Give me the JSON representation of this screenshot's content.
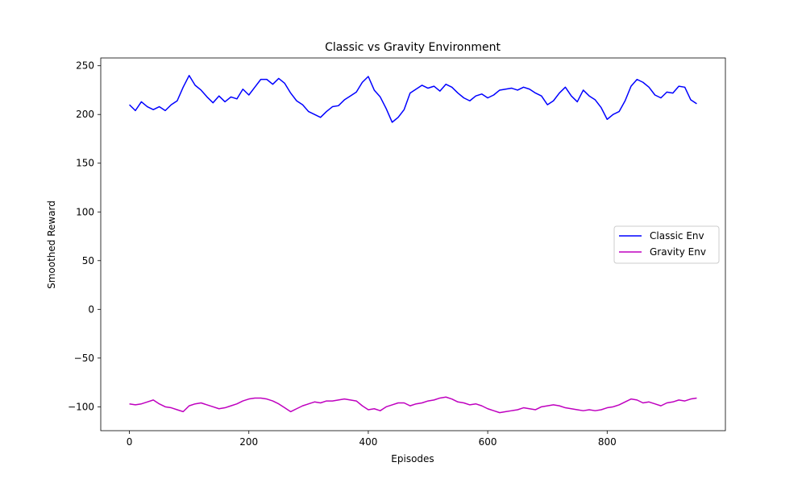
{
  "chart_data": {
    "type": "line",
    "title": "Classic vs Gravity Environment",
    "xlabel": "Episodes",
    "ylabel": "Smoothed Reward",
    "xlim": [
      -48,
      998
    ],
    "ylim": [
      -124.5,
      258
    ],
    "x_ticks": [
      0,
      200,
      400,
      600,
      800
    ],
    "y_ticks": [
      -100,
      -50,
      0,
      50,
      100,
      150,
      200,
      250
    ],
    "grid": false,
    "legend_position": "center right",
    "series": [
      {
        "name": "Classic Env",
        "color": "#0000ff",
        "points": [
          [
            0,
            210
          ],
          [
            10,
            204
          ],
          [
            20,
            213
          ],
          [
            30,
            208
          ],
          [
            40,
            205
          ],
          [
            50,
            208
          ],
          [
            60,
            204
          ],
          [
            70,
            210
          ],
          [
            80,
            214
          ],
          [
            90,
            228
          ],
          [
            100,
            240
          ],
          [
            110,
            230
          ],
          [
            120,
            225
          ],
          [
            130,
            218
          ],
          [
            140,
            212
          ],
          [
            150,
            219
          ],
          [
            160,
            213
          ],
          [
            170,
            218
          ],
          [
            180,
            216
          ],
          [
            190,
            226
          ],
          [
            200,
            220
          ],
          [
            210,
            228
          ],
          [
            220,
            236
          ],
          [
            230,
            236
          ],
          [
            240,
            231
          ],
          [
            250,
            237
          ],
          [
            260,
            232
          ],
          [
            270,
            222
          ],
          [
            280,
            214
          ],
          [
            290,
            210
          ],
          [
            300,
            203
          ],
          [
            310,
            200
          ],
          [
            320,
            197
          ],
          [
            330,
            203
          ],
          [
            340,
            208
          ],
          [
            350,
            209
          ],
          [
            360,
            215
          ],
          [
            370,
            219
          ],
          [
            380,
            223
          ],
          [
            390,
            233
          ],
          [
            400,
            239
          ],
          [
            410,
            225
          ],
          [
            420,
            218
          ],
          [
            430,
            206
          ],
          [
            440,
            192
          ],
          [
            450,
            197
          ],
          [
            460,
            205
          ],
          [
            470,
            222
          ],
          [
            480,
            226
          ],
          [
            490,
            230
          ],
          [
            500,
            227
          ],
          [
            510,
            229
          ],
          [
            520,
            224
          ],
          [
            530,
            231
          ],
          [
            540,
            228
          ],
          [
            550,
            222
          ],
          [
            560,
            217
          ],
          [
            570,
            214
          ],
          [
            580,
            219
          ],
          [
            590,
            221
          ],
          [
            600,
            217
          ],
          [
            610,
            220
          ],
          [
            620,
            225
          ],
          [
            630,
            226
          ],
          [
            640,
            227
          ],
          [
            650,
            225
          ],
          [
            660,
            228
          ],
          [
            670,
            226
          ],
          [
            680,
            222
          ],
          [
            690,
            219
          ],
          [
            700,
            210
          ],
          [
            710,
            214
          ],
          [
            720,
            222
          ],
          [
            730,
            228
          ],
          [
            740,
            219
          ],
          [
            750,
            213
          ],
          [
            760,
            225
          ],
          [
            770,
            219
          ],
          [
            780,
            215
          ],
          [
            790,
            207
          ],
          [
            800,
            195
          ],
          [
            810,
            200
          ],
          [
            820,
            203
          ],
          [
            830,
            214
          ],
          [
            840,
            229
          ],
          [
            850,
            236
          ],
          [
            860,
            233
          ],
          [
            870,
            228
          ],
          [
            880,
            220
          ],
          [
            890,
            217
          ],
          [
            900,
            223
          ],
          [
            910,
            222
          ],
          [
            920,
            229
          ],
          [
            930,
            228
          ],
          [
            940,
            215
          ],
          [
            950,
            211
          ]
        ]
      },
      {
        "name": "Gravity Env",
        "color": "#bf00bf",
        "points": [
          [
            0,
            -97
          ],
          [
            10,
            -98
          ],
          [
            20,
            -97
          ],
          [
            30,
            -95
          ],
          [
            40,
            -93
          ],
          [
            50,
            -97
          ],
          [
            60,
            -100
          ],
          [
            70,
            -101
          ],
          [
            80,
            -103
          ],
          [
            90,
            -105
          ],
          [
            100,
            -99
          ],
          [
            110,
            -97
          ],
          [
            120,
            -96
          ],
          [
            130,
            -98
          ],
          [
            140,
            -100
          ],
          [
            150,
            -102
          ],
          [
            160,
            -101
          ],
          [
            170,
            -99
          ],
          [
            180,
            -97
          ],
          [
            190,
            -94
          ],
          [
            200,
            -92
          ],
          [
            210,
            -91
          ],
          [
            220,
            -91
          ],
          [
            230,
            -92
          ],
          [
            240,
            -94
          ],
          [
            250,
            -97
          ],
          [
            260,
            -101
          ],
          [
            270,
            -105
          ],
          [
            280,
            -102
          ],
          [
            290,
            -99
          ],
          [
            300,
            -97
          ],
          [
            310,
            -95
          ],
          [
            320,
            -96
          ],
          [
            330,
            -94
          ],
          [
            340,
            -94
          ],
          [
            350,
            -93
          ],
          [
            360,
            -92
          ],
          [
            370,
            -93
          ],
          [
            380,
            -94
          ],
          [
            390,
            -99
          ],
          [
            400,
            -103
          ],
          [
            410,
            -102
          ],
          [
            420,
            -104
          ],
          [
            430,
            -100
          ],
          [
            440,
            -98
          ],
          [
            450,
            -96
          ],
          [
            460,
            -96
          ],
          [
            470,
            -99
          ],
          [
            480,
            -97
          ],
          [
            490,
            -96
          ],
          [
            500,
            -94
          ],
          [
            510,
            -93
          ],
          [
            520,
            -91
          ],
          [
            530,
            -90
          ],
          [
            540,
            -92
          ],
          [
            550,
            -95
          ],
          [
            560,
            -96
          ],
          [
            570,
            -98
          ],
          [
            580,
            -97
          ],
          [
            590,
            -99
          ],
          [
            600,
            -102
          ],
          [
            610,
            -104
          ],
          [
            620,
            -106
          ],
          [
            630,
            -105
          ],
          [
            640,
            -104
          ],
          [
            650,
            -103
          ],
          [
            660,
            -101
          ],
          [
            670,
            -102
          ],
          [
            680,
            -103
          ],
          [
            690,
            -100
          ],
          [
            700,
            -99
          ],
          [
            710,
            -98
          ],
          [
            720,
            -99
          ],
          [
            730,
            -101
          ],
          [
            740,
            -102
          ],
          [
            750,
            -103
          ],
          [
            760,
            -104
          ],
          [
            770,
            -103
          ],
          [
            780,
            -104
          ],
          [
            790,
            -103
          ],
          [
            800,
            -101
          ],
          [
            810,
            -100
          ],
          [
            820,
            -98
          ],
          [
            830,
            -95
          ],
          [
            840,
            -92
          ],
          [
            850,
            -93
          ],
          [
            860,
            -96
          ],
          [
            870,
            -95
          ],
          [
            880,
            -97
          ],
          [
            890,
            -99
          ],
          [
            900,
            -96
          ],
          [
            910,
            -95
          ],
          [
            920,
            -93
          ],
          [
            930,
            -94
          ],
          [
            940,
            -92
          ],
          [
            950,
            -91
          ]
        ]
      }
    ]
  }
}
